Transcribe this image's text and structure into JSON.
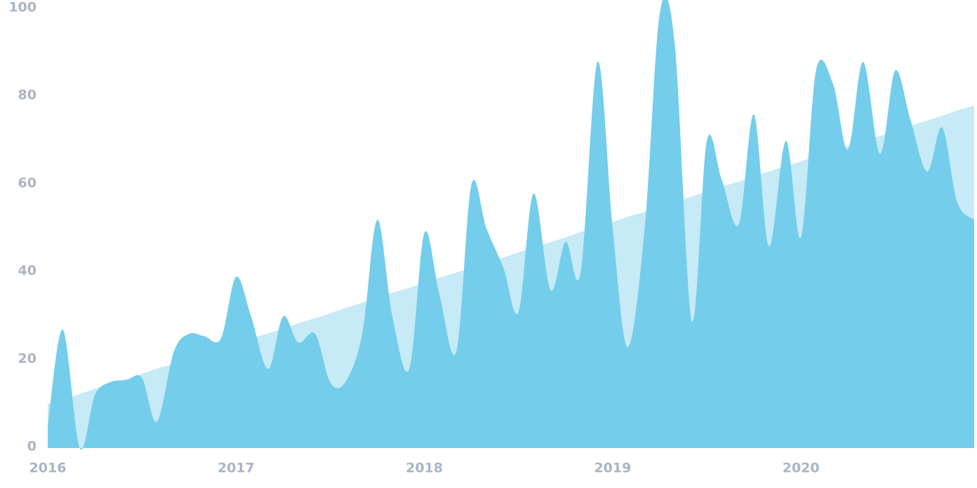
{
  "chart_data": {
    "type": "area",
    "x": [
      2016.0,
      2016.08,
      2016.17,
      2016.25,
      2016.33,
      2016.42,
      2016.5,
      2016.58,
      2016.67,
      2016.75,
      2016.83,
      2016.92,
      2017.0,
      2017.08,
      2017.17,
      2017.25,
      2017.33,
      2017.42,
      2017.5,
      2017.58,
      2017.67,
      2017.75,
      2017.83,
      2017.92,
      2018.0,
      2018.08,
      2018.17,
      2018.25,
      2018.33,
      2018.42,
      2018.5,
      2018.58,
      2018.67,
      2018.75,
      2018.83,
      2018.92,
      2019.0,
      2019.08,
      2019.17,
      2019.25,
      2019.33,
      2019.42,
      2019.5,
      2019.58,
      2019.67,
      2019.75,
      2019.83,
      2019.92,
      2020.0,
      2020.08,
      2020.17,
      2020.25,
      2020.33,
      2020.42,
      2020.5,
      2020.58,
      2020.67,
      2020.75,
      2020.83,
      2020.92
    ],
    "series": [
      {
        "color": "#c6eaf6",
        "values": [
          10,
          11.2,
          12.3,
          13.5,
          14.6,
          15.8,
          16.9,
          18.1,
          19.2,
          20.4,
          21.5,
          22.7,
          23.8,
          25,
          26.1,
          27.3,
          28.4,
          29.6,
          30.7,
          31.9,
          33.1,
          34.2,
          35.4,
          36.5,
          37.7,
          38.8,
          40,
          41.1,
          42.3,
          43.4,
          44.6,
          45.7,
          46.9,
          48,
          49.2,
          50.3,
          51.5,
          52.7,
          53.8,
          55,
          56.1,
          57.3,
          58.4,
          59.6,
          60.7,
          61.9,
          63,
          64.2,
          65.3,
          66.5,
          67.6,
          68.8,
          69.9,
          71.1,
          72.2,
          73.4,
          74.6,
          75.7,
          76.9,
          78
        ]
      },
      {
        "color": "#74cdea",
        "values": [
          5,
          27,
          0,
          12,
          15,
          15.5,
          16,
          6,
          22,
          26,
          25.5,
          25,
          39,
          30,
          18,
          30,
          24,
          26,
          15,
          15,
          26,
          52,
          30,
          18,
          49,
          35,
          22,
          60,
          50,
          41,
          31,
          58,
          36,
          47,
          40,
          88,
          50,
          23,
          50,
          99,
          92,
          29,
          70,
          61,
          51,
          76,
          46,
          70,
          48,
          86,
          83,
          68,
          88,
          67,
          86,
          75,
          63,
          73,
          56,
          52
        ]
      }
    ],
    "xlim": [
      2016.0,
      2020.92
    ],
    "xticks": [
      2016,
      2017,
      2018,
      2019,
      2020
    ],
    "ylim": [
      0,
      100
    ],
    "yticks": [
      0,
      20,
      40,
      60,
      80,
      100
    ],
    "grid": false
  }
}
